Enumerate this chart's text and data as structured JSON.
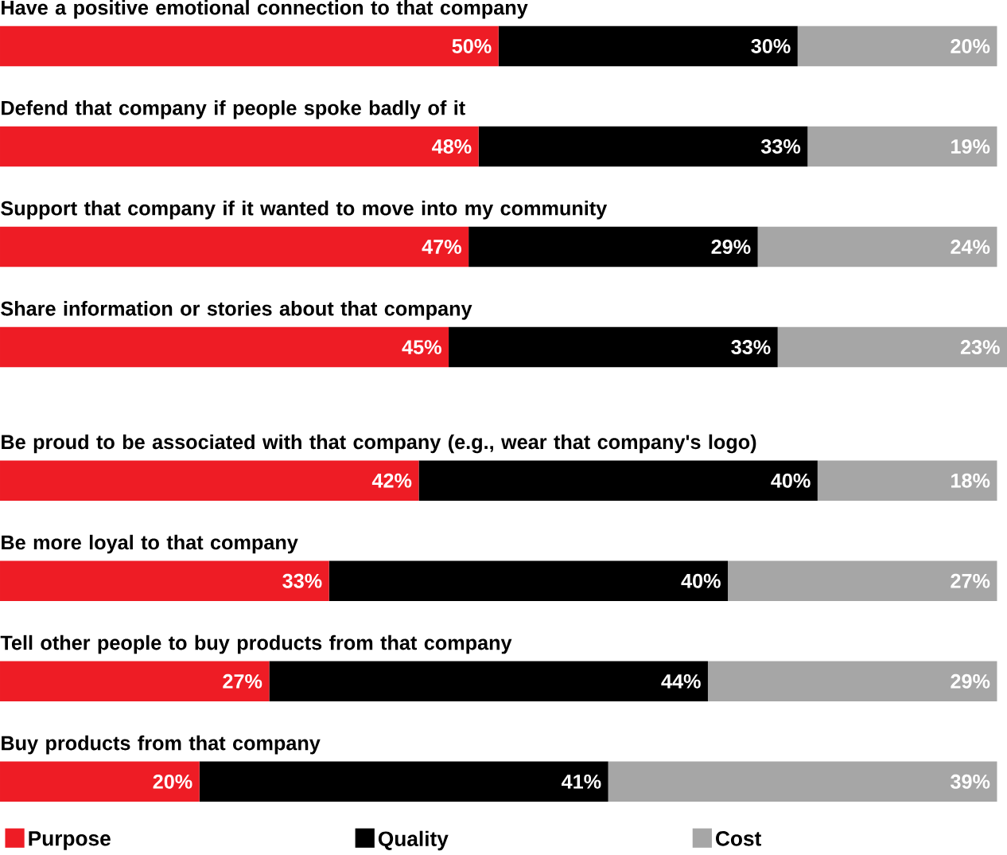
{
  "chart_data": {
    "type": "bar",
    "orientation": "horizontal",
    "stacked": true,
    "tick_labels": false,
    "legend": "bottom",
    "data_labels": true,
    "categories": [
      "Have a positive emotional connection to that company",
      "Defend that company if people spoke badly of it",
      "Support that company if it wanted to move into my community",
      "Share information or stories about that company",
      "Be proud to be associated with that company (e.g., wear that company's logo)",
      "Be more loyal to that company",
      "Tell other people to buy products from that company",
      "Buy products from that company"
    ],
    "series": [
      {
        "name": "Purpose",
        "color": "#ee1c25",
        "values": [
          50,
          48,
          47,
          45,
          42,
          33,
          27,
          20
        ],
        "value_labels": [
          "50%",
          "48%",
          "47%",
          "45%",
          "42%",
          "33%",
          "27%",
          "20%"
        ]
      },
      {
        "name": "Quality",
        "color": "#000000",
        "values": [
          30,
          33,
          29,
          33,
          40,
          40,
          44,
          41
        ],
        "value_labels": [
          "30%",
          "33%",
          "29%",
          "33%",
          "40%",
          "40%",
          "44%",
          "41%"
        ]
      },
      {
        "name": "Cost",
        "color": "#a6a6a6",
        "values": [
          20,
          19,
          24,
          23,
          18,
          27,
          29,
          39
        ],
        "value_labels": [
          "20%",
          "19%",
          "24%",
          "23%",
          "18%",
          "27%",
          "29%",
          "39%"
        ]
      }
    ]
  }
}
